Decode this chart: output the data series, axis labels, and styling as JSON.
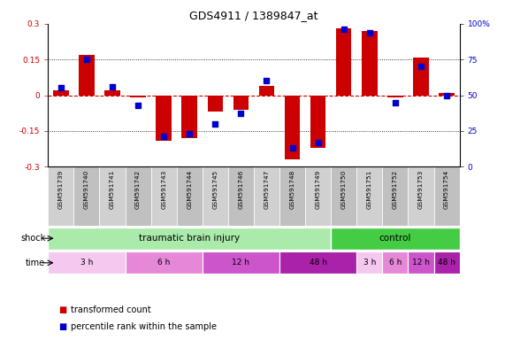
{
  "title": "GDS4911 / 1389847_at",
  "samples": [
    "GSM591739",
    "GSM591740",
    "GSM591741",
    "GSM591742",
    "GSM591743",
    "GSM591744",
    "GSM591745",
    "GSM591746",
    "GSM591747",
    "GSM591748",
    "GSM591749",
    "GSM591750",
    "GSM591751",
    "GSM591752",
    "GSM591753",
    "GSM591754"
  ],
  "transformed_count": [
    0.02,
    0.17,
    0.02,
    -0.01,
    -0.19,
    -0.18,
    -0.07,
    -0.06,
    0.04,
    -0.27,
    -0.22,
    0.28,
    0.27,
    -0.01,
    0.16,
    0.01
  ],
  "percentile_rank": [
    55,
    75,
    56,
    43,
    21,
    23,
    30,
    37,
    60,
    13,
    17,
    96,
    94,
    45,
    70,
    50
  ],
  "bar_color": "#cc0000",
  "dot_color": "#0000cc",
  "ylim_left": [
    -0.3,
    0.3
  ],
  "ylim_right": [
    0,
    100
  ],
  "yticks_left": [
    -0.3,
    -0.15,
    0.0,
    0.15,
    0.3
  ],
  "yticks_right": [
    0,
    25,
    50,
    75,
    100
  ],
  "ytick_labels_left": [
    "-0.3",
    "-0.15",
    "0",
    "0.15",
    "0.3"
  ],
  "ytick_labels_right": [
    "0",
    "25",
    "50",
    "75",
    "100%"
  ],
  "dotted_lines": [
    -0.15,
    0.15
  ],
  "shock_groups": [
    {
      "label": "traumatic brain injury",
      "start": 0,
      "end": 11,
      "color": "#aaeaaa"
    },
    {
      "label": "control",
      "start": 11,
      "end": 16,
      "color": "#44cc44"
    }
  ],
  "time_groups": [
    {
      "label": "3 h",
      "start": 0,
      "end": 3,
      "color": "#f5c8f0"
    },
    {
      "label": "6 h",
      "start": 3,
      "end": 6,
      "color": "#e688d8"
    },
    {
      "label": "12 h",
      "start": 6,
      "end": 9,
      "color": "#cc55cc"
    },
    {
      "label": "48 h",
      "start": 9,
      "end": 12,
      "color": "#aa22aa"
    },
    {
      "label": "3 h",
      "start": 12,
      "end": 13,
      "color": "#f5c8f0"
    },
    {
      "label": "6 h",
      "start": 13,
      "end": 14,
      "color": "#e688d8"
    },
    {
      "label": "12 h",
      "start": 14,
      "end": 15,
      "color": "#cc55cc"
    },
    {
      "label": "48 h",
      "start": 15,
      "end": 16,
      "color": "#aa22aa"
    }
  ],
  "legend": [
    {
      "color": "#cc0000",
      "label": "transformed count"
    },
    {
      "color": "#0000cc",
      "label": "percentile rank within the sample"
    }
  ],
  "bg_color": "#d8d8d8",
  "plot_bg": "#ffffff"
}
